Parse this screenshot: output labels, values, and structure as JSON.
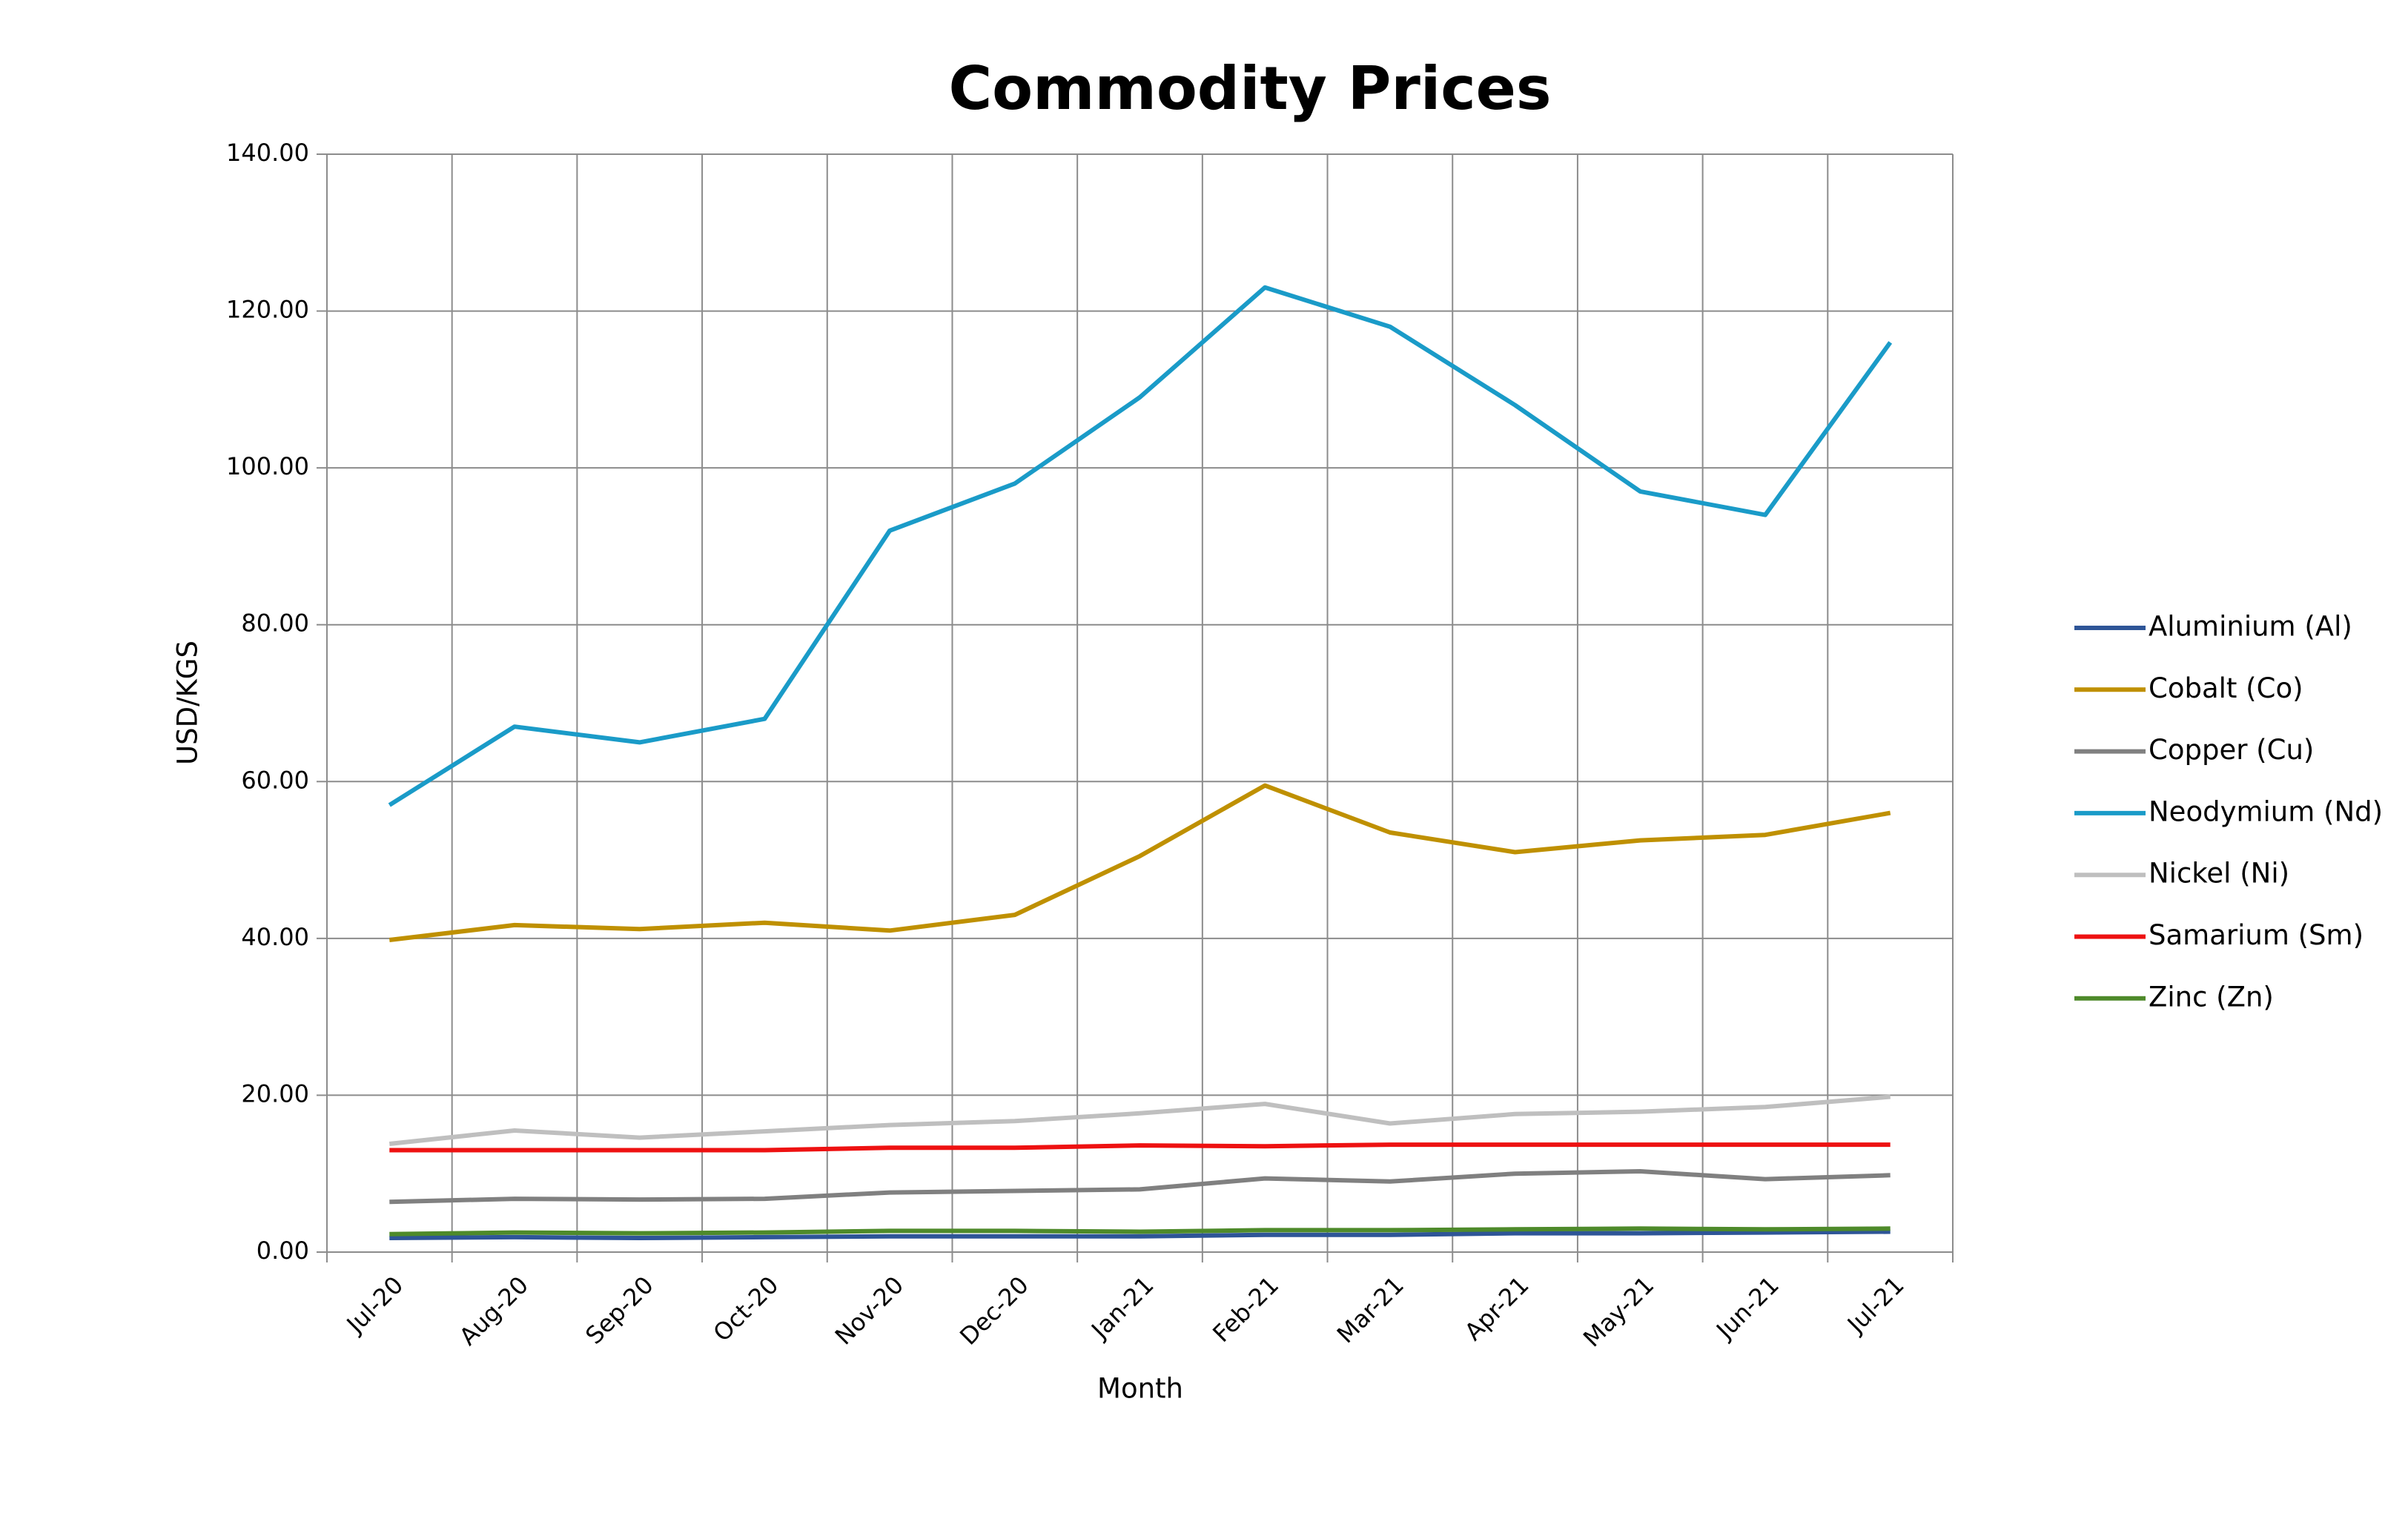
{
  "chart_data": {
    "type": "line",
    "title": "Commodity Prices",
    "x_label": "Month",
    "y_label": "USD/KGS",
    "categories": [
      "Jul-20",
      "Aug-20",
      "Sep-20",
      "Oct-20",
      "Nov-20",
      "Dec-20",
      "Jan-21",
      "Feb-21",
      "Mar-21",
      "Apr-21",
      "May-21",
      "Jun-21",
      "Jul-21"
    ],
    "series": [
      {
        "name": "Aluminium (Al)",
        "color": "#2e5597",
        "values": [
          1.8,
          1.9,
          1.8,
          1.9,
          2.0,
          2.0,
          2.0,
          2.2,
          2.2,
          2.4,
          2.4,
          2.5,
          2.6
        ]
      },
      {
        "name": "Cobalt (Co)",
        "color": "#bf9000",
        "values": [
          39.8,
          41.7,
          41.2,
          42,
          41,
          43,
          50.5,
          59.5,
          53.5,
          51,
          52.5,
          53.2,
          56
        ]
      },
      {
        "name": "Copper (Cu)",
        "color": "#808080",
        "values": [
          6.4,
          6.8,
          6.7,
          6.8,
          7.6,
          7.8,
          8,
          9.4,
          9,
          10,
          10.3,
          9.3,
          9.8
        ]
      },
      {
        "name": "Neodymium (Nd)",
        "color": "#1a9bc8",
        "values": [
          57,
          67,
          65,
          68,
          92,
          98,
          109,
          123,
          118,
          108,
          97,
          94,
          116
        ]
      },
      {
        "name": "Nickel (Ni)",
        "color": "#bfbfbf",
        "values": [
          13.8,
          15.5,
          14.6,
          15.4,
          16.2,
          16.7,
          17.7,
          18.9,
          16.4,
          17.6,
          17.9,
          18.5,
          19.8
        ]
      },
      {
        "name": "Samarium (Sm)",
        "color": "#ee1111",
        "values": [
          13,
          13,
          13,
          13,
          13.3,
          13.3,
          13.6,
          13.5,
          13.7,
          13.7,
          13.7,
          13.7,
          13.7
        ]
      },
      {
        "name": "Zinc (Zn)",
        "color": "#4e8a2a",
        "values": [
          2.3,
          2.5,
          2.4,
          2.5,
          2.7,
          2.7,
          2.6,
          2.8,
          2.8,
          2.9,
          3.0,
          2.9,
          3.0
        ]
      }
    ],
    "ylim": [
      0,
      140
    ],
    "yticks": [
      {
        "value": 0,
        "label": "0.00"
      },
      {
        "value": 20,
        "label": "20.00"
      },
      {
        "value": 40,
        "label": "40.00"
      },
      {
        "value": 60,
        "label": "60.00"
      },
      {
        "value": 80,
        "label": "80.00"
      },
      {
        "value": 100,
        "label": "100.00"
      },
      {
        "value": 120,
        "label": "120.00"
      },
      {
        "value": 140,
        "label": "140.00"
      }
    ],
    "grid": true,
    "legend": "right"
  }
}
